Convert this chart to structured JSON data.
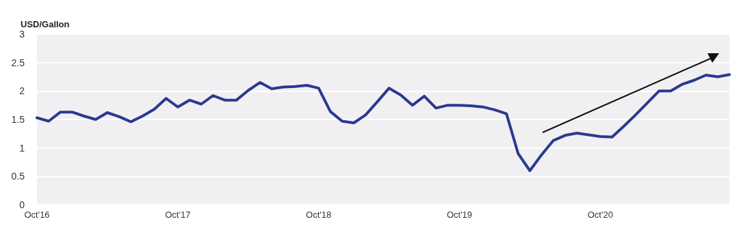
{
  "chart_data": {
    "type": "line",
    "ylabel": "USD/Gallon",
    "categories": [
      "Oct'16",
      null,
      null,
      null,
      null,
      null,
      null,
      null,
      null,
      null,
      null,
      null,
      "Oct'17",
      null,
      null,
      null,
      null,
      null,
      null,
      null,
      null,
      null,
      null,
      null,
      "Oct'18",
      null,
      null,
      null,
      null,
      null,
      null,
      null,
      null,
      null,
      null,
      null,
      "Oct'19",
      null,
      null,
      null,
      null,
      null,
      null,
      null,
      null,
      null,
      null,
      null,
      "Oct'20",
      null,
      null,
      null,
      null,
      null,
      null,
      null,
      null,
      null,
      null,
      null
    ],
    "series": [
      {
        "color": "#2b3990",
        "values": [
          1.53,
          1.47,
          1.63,
          1.63,
          1.56,
          1.5,
          1.62,
          1.55,
          1.46,
          1.56,
          1.68,
          1.87,
          1.72,
          1.84,
          1.77,
          1.92,
          1.84,
          1.84,
          2.01,
          2.15,
          2.04,
          2.07,
          2.08,
          2.1,
          2.05,
          1.64,
          1.47,
          1.44,
          1.58,
          1.81,
          2.05,
          1.93,
          1.75,
          1.91,
          1.7,
          1.75,
          1.75,
          1.74,
          1.72,
          1.67,
          1.6,
          0.9,
          0.6,
          0.88,
          1.13,
          1.22,
          1.26,
          1.23,
          1.2,
          1.19,
          1.38,
          1.58,
          1.79,
          2.0,
          2.0,
          2.12,
          2.19,
          2.28,
          2.25,
          2.29
        ]
      }
    ],
    "ylim": [
      0,
      3
    ],
    "yticks": [
      0,
      0.5,
      1,
      1.5,
      2,
      2.5,
      3
    ],
    "grid": "y",
    "marker": "none",
    "line_style": "solid"
  }
}
